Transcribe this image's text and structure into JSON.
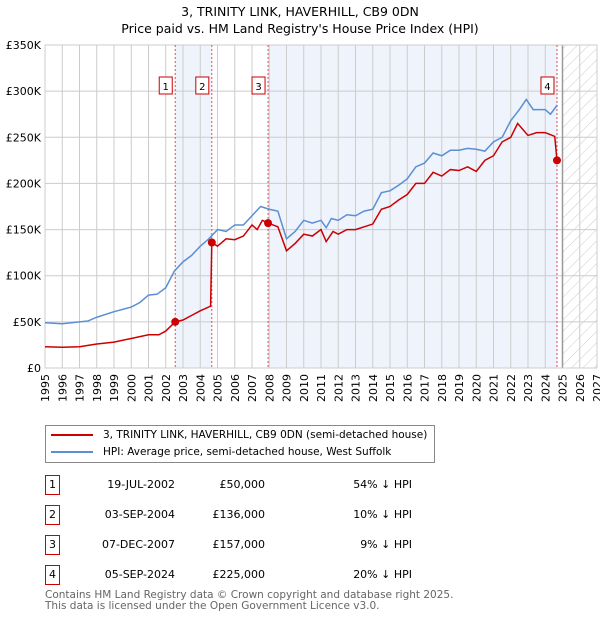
{
  "title": "3, TRINITY LINK, HAVERHILL, CB9 0DN",
  "subtitle": "Price paid vs. HM Land Registry's House Price Index (HPI)",
  "chart_data": {
    "type": "line",
    "xlim": [
      1995,
      2027
    ],
    "ylim": [
      0,
      350000
    ],
    "yticks": [
      {
        "v": 0,
        "label": "£0"
      },
      {
        "v": 50000,
        "label": "£50K"
      },
      {
        "v": 100000,
        "label": "£100K"
      },
      {
        "v": 150000,
        "label": "£150K"
      },
      {
        "v": 200000,
        "label": "£200K"
      },
      {
        "v": 250000,
        "label": "£250K"
      },
      {
        "v": 300000,
        "label": "£300K"
      },
      {
        "v": 350000,
        "label": "£350K"
      }
    ],
    "xticks": [
      1995,
      1996,
      1997,
      1998,
      1999,
      2000,
      2001,
      2002,
      2003,
      2004,
      2005,
      2006,
      2007,
      2008,
      2009,
      2010,
      2011,
      2012,
      2013,
      2014,
      2015,
      2016,
      2017,
      2018,
      2019,
      2020,
      2021,
      2022,
      2023,
      2024,
      2025,
      2026,
      2027
    ],
    "forecast_start": 2025,
    "series": [
      {
        "name": "3, TRINITY LINK, HAVERHILL, CB9 0DN (semi-detached house)",
        "color": "#cc0000",
        "points": [
          [
            1995,
            23
          ],
          [
            1996,
            22.5
          ],
          [
            1997,
            23
          ],
          [
            1998,
            26
          ],
          [
            1999,
            28
          ],
          [
            2000,
            32
          ],
          [
            2001,
            36
          ],
          [
            2001.6,
            36
          ],
          [
            2002,
            40
          ],
          [
            2002.55,
            50
          ],
          [
            2003,
            52
          ],
          [
            2003.6,
            58
          ],
          [
            2004,
            62
          ],
          [
            2004.6,
            67
          ],
          [
            2004.67,
            136
          ],
          [
            2005,
            132
          ],
          [
            2005.5,
            140
          ],
          [
            2006,
            139
          ],
          [
            2006.5,
            143
          ],
          [
            2007,
            155
          ],
          [
            2007.3,
            150
          ],
          [
            2007.6,
            160
          ],
          [
            2007.93,
            157
          ],
          [
            2008.5,
            153
          ],
          [
            2009,
            127
          ],
          [
            2009.5,
            135
          ],
          [
            2010,
            145
          ],
          [
            2010.5,
            143
          ],
          [
            2011,
            150
          ],
          [
            2011.3,
            137
          ],
          [
            2011.7,
            148
          ],
          [
            2012,
            145
          ],
          [
            2012.5,
            150
          ],
          [
            2013,
            150
          ],
          [
            2013.5,
            153
          ],
          [
            2014,
            156
          ],
          [
            2014.5,
            172
          ],
          [
            2015,
            175
          ],
          [
            2015.5,
            182
          ],
          [
            2016,
            188
          ],
          [
            2016.5,
            200
          ],
          [
            2017,
            200
          ],
          [
            2017.5,
            212
          ],
          [
            2018,
            208
          ],
          [
            2018.5,
            215
          ],
          [
            2019,
            214
          ],
          [
            2019.5,
            218
          ],
          [
            2020,
            213
          ],
          [
            2020.5,
            225
          ],
          [
            2021,
            230
          ],
          [
            2021.5,
            245
          ],
          [
            2022,
            250
          ],
          [
            2022.4,
            265
          ],
          [
            2023,
            252
          ],
          [
            2023.5,
            255
          ],
          [
            2024,
            255
          ],
          [
            2024.55,
            251
          ],
          [
            2024.68,
            225
          ],
          [
            2024.75,
            229
          ]
        ]
      },
      {
        "name": "HPI: Average price, semi-detached house, West Suffolk",
        "color": "#5b8fd4",
        "points": [
          [
            1995,
            49
          ],
          [
            1996,
            48
          ],
          [
            1997,
            50
          ],
          [
            1997.5,
            51
          ],
          [
            1998,
            55
          ],
          [
            1999,
            61
          ],
          [
            2000,
            66
          ],
          [
            2000.5,
            71
          ],
          [
            2001,
            79
          ],
          [
            2001.5,
            80
          ],
          [
            2002,
            87
          ],
          [
            2002.5,
            105
          ],
          [
            2003,
            115
          ],
          [
            2003.5,
            122
          ],
          [
            2004,
            132
          ],
          [
            2004.5,
            140
          ],
          [
            2005,
            150
          ],
          [
            2005.5,
            148
          ],
          [
            2006,
            155
          ],
          [
            2006.5,
            155
          ],
          [
            2007,
            165
          ],
          [
            2007.5,
            175
          ],
          [
            2008,
            172
          ],
          [
            2008.5,
            170
          ],
          [
            2009,
            140
          ],
          [
            2009.5,
            148
          ],
          [
            2010,
            160
          ],
          [
            2010.5,
            157
          ],
          [
            2011,
            160
          ],
          [
            2011.3,
            152
          ],
          [
            2011.6,
            162
          ],
          [
            2012,
            160
          ],
          [
            2012.5,
            166
          ],
          [
            2013,
            165
          ],
          [
            2013.5,
            170
          ],
          [
            2014,
            172
          ],
          [
            2014.5,
            190
          ],
          [
            2015,
            192
          ],
          [
            2015.5,
            198
          ],
          [
            2016,
            205
          ],
          [
            2016.5,
            218
          ],
          [
            2017,
            222
          ],
          [
            2017.5,
            233
          ],
          [
            2018,
            230
          ],
          [
            2018.5,
            236
          ],
          [
            2019,
            236
          ],
          [
            2019.5,
            238
          ],
          [
            2020,
            237
          ],
          [
            2020.5,
            235
          ],
          [
            2021,
            245
          ],
          [
            2021.5,
            250
          ],
          [
            2022,
            268
          ],
          [
            2022.5,
            280
          ],
          [
            2022.9,
            291
          ],
          [
            2023.3,
            280
          ],
          [
            2023.7,
            280
          ],
          [
            2024,
            280
          ],
          [
            2024.3,
            275
          ],
          [
            2024.7,
            285
          ]
        ]
      }
    ],
    "sales": [
      {
        "n": "1",
        "x": 2002.55,
        "price": 50000,
        "date": "19-JUL-2002",
        "price_label": "£50,000",
        "hpi": "54% ↓ HPI"
      },
      {
        "n": "2",
        "x": 2004.67,
        "price": 136000,
        "date": "03-SEP-2004",
        "price_label": "£136,000",
        "hpi": "10% ↓ HPI"
      },
      {
        "n": "3",
        "x": 2007.93,
        "price": 157000,
        "date": "07-DEC-2007",
        "price_label": "£157,000",
        "hpi": "9% ↓ HPI"
      },
      {
        "n": "4",
        "x": 2024.68,
        "price": 225000,
        "date": "05-SEP-2024",
        "price_label": "£225,000",
        "hpi": "20% ↓ HPI"
      }
    ]
  },
  "footer": {
    "line1": "Contains HM Land Registry data © Crown copyright and database right 2025.",
    "line2": "This data is licensed under the Open Government Licence v3.0."
  }
}
